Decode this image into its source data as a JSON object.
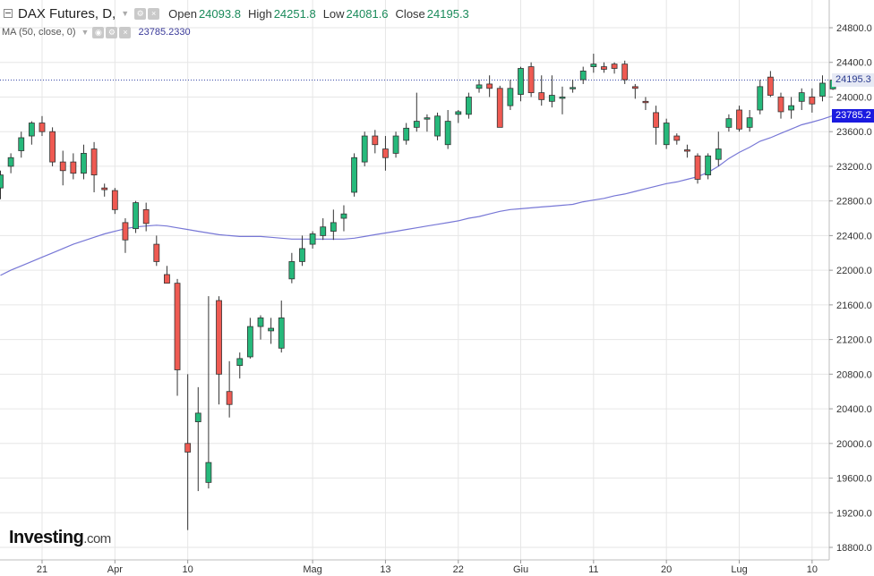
{
  "header": {
    "symbol": "DAX Futures, D,",
    "open_label": "Open",
    "open_value": "24093.8",
    "high_label": "High",
    "high_value": "24251.8",
    "low_label": "Low",
    "low_value": "24081.6",
    "close_label": "Close",
    "close_value": "24195.3"
  },
  "indicator": {
    "label": "MA (50, close, 0)",
    "value": "23785.2330"
  },
  "price_tags": {
    "close": "24195.3",
    "ma": "23785.2"
  },
  "logo": {
    "main": "Investing",
    "suffix": ".com"
  },
  "colors": {
    "up": "#26b97b",
    "down": "#ef5a52",
    "ma_line": "#7777d6",
    "grid": "#e6e6e6",
    "close_line": "#3a4aa8"
  },
  "chart_data": {
    "type": "candlestick",
    "title": "DAX Futures, D,",
    "ylim": [
      18600,
      24900
    ],
    "y_ticks": [
      "24800.0",
      "24400.0",
      "24000.0",
      "23600.0",
      "23200.0",
      "22800.0",
      "22400.0",
      "22000.0",
      "21600.0",
      "21200.0",
      "20800.0",
      "20400.0",
      "20000.0",
      "19600.0",
      "19200.0",
      "18800.0"
    ],
    "x_ticks": [
      "21",
      "Apr",
      "10",
      "Mag",
      "13",
      "22",
      "Giu",
      "11",
      "20",
      "Lug",
      "10"
    ],
    "x_tick_candle_index": [
      4,
      11,
      18,
      30,
      37,
      44,
      50,
      57,
      64,
      71,
      78
    ],
    "last_close_line": 24195.3,
    "candles": [
      {
        "o": 22950,
        "h": 23150,
        "l": 22820,
        "c": 23100
      },
      {
        "o": 23200,
        "h": 23350,
        "l": 23120,
        "c": 23300
      },
      {
        "o": 23380,
        "h": 23600,
        "l": 23300,
        "c": 23530
      },
      {
        "o": 23550,
        "h": 23720,
        "l": 23450,
        "c": 23700
      },
      {
        "o": 23700,
        "h": 23780,
        "l": 23550,
        "c": 23600
      },
      {
        "o": 23600,
        "h": 23650,
        "l": 23200,
        "c": 23250
      },
      {
        "o": 23250,
        "h": 23380,
        "l": 22980,
        "c": 23150
      },
      {
        "o": 23250,
        "h": 23350,
        "l": 23050,
        "c": 23120
      },
      {
        "o": 23120,
        "h": 23450,
        "l": 23050,
        "c": 23350
      },
      {
        "o": 23400,
        "h": 23480,
        "l": 22900,
        "c": 23100
      },
      {
        "o": 22950,
        "h": 23000,
        "l": 22850,
        "c": 22930
      },
      {
        "o": 22920,
        "h": 22950,
        "l": 22650,
        "c": 22700
      },
      {
        "o": 22550,
        "h": 22600,
        "l": 22200,
        "c": 22350
      },
      {
        "o": 22480,
        "h": 22800,
        "l": 22430,
        "c": 22780
      },
      {
        "o": 22700,
        "h": 22780,
        "l": 22450,
        "c": 22540
      },
      {
        "o": 22300,
        "h": 22400,
        "l": 22050,
        "c": 22100
      },
      {
        "o": 21950,
        "h": 22050,
        "l": 21850,
        "c": 21850
      },
      {
        "o": 21850,
        "h": 21900,
        "l": 20550,
        "c": 20850
      },
      {
        "o": 20000,
        "h": 20800,
        "l": 19000,
        "c": 19900
      },
      {
        "o": 20250,
        "h": 20650,
        "l": 19450,
        "c": 20350
      },
      {
        "o": 19550,
        "h": 21700,
        "l": 19480,
        "c": 19780
      },
      {
        "o": 21650,
        "h": 21700,
        "l": 20450,
        "c": 20800
      },
      {
        "o": 20600,
        "h": 20950,
        "l": 20300,
        "c": 20450
      },
      {
        "o": 20900,
        "h": 21050,
        "l": 20750,
        "c": 20980
      },
      {
        "o": 21000,
        "h": 21450,
        "l": 20980,
        "c": 21350
      },
      {
        "o": 21350,
        "h": 21480,
        "l": 21200,
        "c": 21450
      },
      {
        "o": 21300,
        "h": 21450,
        "l": 21150,
        "c": 21330
      },
      {
        "o": 21100,
        "h": 21650,
        "l": 21050,
        "c": 21450
      },
      {
        "o": 21900,
        "h": 22200,
        "l": 21850,
        "c": 22100
      },
      {
        "o": 22100,
        "h": 22400,
        "l": 22050,
        "c": 22250
      },
      {
        "o": 22300,
        "h": 22450,
        "l": 22250,
        "c": 22420
      },
      {
        "o": 22400,
        "h": 22600,
        "l": 22350,
        "c": 22500
      },
      {
        "o": 22450,
        "h": 22700,
        "l": 22350,
        "c": 22550
      },
      {
        "o": 22600,
        "h": 22750,
        "l": 22450,
        "c": 22650
      },
      {
        "o": 22900,
        "h": 23350,
        "l": 22850,
        "c": 23300
      },
      {
        "o": 23250,
        "h": 23600,
        "l": 23200,
        "c": 23550
      },
      {
        "o": 23550,
        "h": 23620,
        "l": 23350,
        "c": 23450
      },
      {
        "o": 23400,
        "h": 23550,
        "l": 23150,
        "c": 23300
      },
      {
        "o": 23350,
        "h": 23600,
        "l": 23300,
        "c": 23550
      },
      {
        "o": 23500,
        "h": 23700,
        "l": 23450,
        "c": 23640
      },
      {
        "o": 23650,
        "h": 24050,
        "l": 23600,
        "c": 23720
      },
      {
        "o": 23750,
        "h": 23800,
        "l": 23600,
        "c": 23760
      },
      {
        "o": 23550,
        "h": 23820,
        "l": 23500,
        "c": 23780
      },
      {
        "o": 23450,
        "h": 23850,
        "l": 23400,
        "c": 23720
      },
      {
        "o": 23800,
        "h": 23850,
        "l": 23700,
        "c": 23830
      },
      {
        "o": 23800,
        "h": 24050,
        "l": 23750,
        "c": 24000
      },
      {
        "o": 24100,
        "h": 24200,
        "l": 24050,
        "c": 24140
      },
      {
        "o": 24150,
        "h": 24250,
        "l": 24000,
        "c": 24100
      },
      {
        "o": 24100,
        "h": 24130,
        "l": 23650,
        "c": 23650
      },
      {
        "o": 23900,
        "h": 24200,
        "l": 23850,
        "c": 24100
      },
      {
        "o": 24030,
        "h": 24350,
        "l": 23950,
        "c": 24330
      },
      {
        "o": 24350,
        "h": 24400,
        "l": 24000,
        "c": 24050
      },
      {
        "o": 24050,
        "h": 24250,
        "l": 23900,
        "c": 23970
      },
      {
        "o": 23950,
        "h": 24250,
        "l": 23880,
        "c": 24020
      },
      {
        "o": 24000,
        "h": 24120,
        "l": 23800,
        "c": 24000
      },
      {
        "o": 24100,
        "h": 24200,
        "l": 24050,
        "c": 24110
      },
      {
        "o": 24200,
        "h": 24350,
        "l": 24150,
        "c": 24300
      },
      {
        "o": 24350,
        "h": 24500,
        "l": 24280,
        "c": 24380
      },
      {
        "o": 24350,
        "h": 24400,
        "l": 24280,
        "c": 24320
      },
      {
        "o": 24380,
        "h": 24400,
        "l": 24270,
        "c": 24330
      },
      {
        "o": 24380,
        "h": 24420,
        "l": 24150,
        "c": 24200
      },
      {
        "o": 24120,
        "h": 24150,
        "l": 23980,
        "c": 24100
      },
      {
        "o": 23950,
        "h": 24000,
        "l": 23850,
        "c": 23940
      },
      {
        "o": 23820,
        "h": 23900,
        "l": 23450,
        "c": 23650
      },
      {
        "o": 23450,
        "h": 23750,
        "l": 23400,
        "c": 23700
      },
      {
        "o": 23550,
        "h": 23580,
        "l": 23450,
        "c": 23500
      },
      {
        "o": 23390,
        "h": 23450,
        "l": 23300,
        "c": 23380
      },
      {
        "o": 23320,
        "h": 23350,
        "l": 23000,
        "c": 23050
      },
      {
        "o": 23100,
        "h": 23350,
        "l": 23050,
        "c": 23320
      },
      {
        "o": 23280,
        "h": 23600,
        "l": 23200,
        "c": 23400
      },
      {
        "o": 23650,
        "h": 23800,
        "l": 23600,
        "c": 23750
      },
      {
        "o": 23850,
        "h": 23900,
        "l": 23600,
        "c": 23630
      },
      {
        "o": 23650,
        "h": 23850,
        "l": 23600,
        "c": 23760
      },
      {
        "o": 23850,
        "h": 24200,
        "l": 23800,
        "c": 24120
      },
      {
        "o": 24230,
        "h": 24300,
        "l": 24000,
        "c": 24020
      },
      {
        "o": 24000,
        "h": 24050,
        "l": 23750,
        "c": 23830
      },
      {
        "o": 23850,
        "h": 24000,
        "l": 23750,
        "c": 23900
      },
      {
        "o": 23950,
        "h": 24100,
        "l": 23850,
        "c": 24050
      },
      {
        "o": 24000,
        "h": 24100,
        "l": 23820,
        "c": 23920
      },
      {
        "o": 24010,
        "h": 24250,
        "l": 23950,
        "c": 24160
      },
      {
        "o": 24093.8,
        "h": 24251.8,
        "l": 24081.6,
        "c": 24195.3
      }
    ],
    "ma": [
      21940,
      22000,
      22050,
      22100,
      22150,
      22200,
      22250,
      22300,
      22340,
      22380,
      22420,
      22450,
      22480,
      22500,
      22510,
      22520,
      22510,
      22490,
      22470,
      22450,
      22430,
      22410,
      22400,
      22390,
      22390,
      22390,
      22380,
      22370,
      22360,
      22360,
      22360,
      22360,
      22360,
      22360,
      22370,
      22390,
      22410,
      22430,
      22450,
      22470,
      22490,
      22510,
      22530,
      22550,
      22570,
      22600,
      22620,
      22650,
      22680,
      22700,
      22710,
      22720,
      22730,
      22740,
      22750,
      22760,
      22790,
      22810,
      22830,
      22860,
      22880,
      22910,
      22940,
      22970,
      23000,
      23020,
      23050,
      23080,
      23130,
      23200,
      23290,
      23360,
      23420,
      23490,
      23530,
      23580,
      23630,
      23680,
      23710,
      23745,
      23785.2
    ]
  }
}
